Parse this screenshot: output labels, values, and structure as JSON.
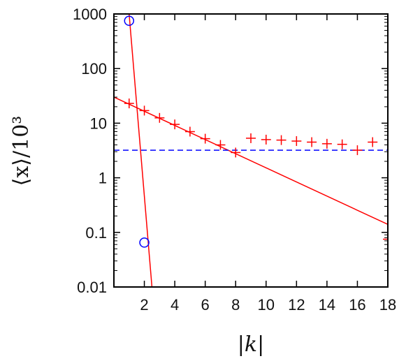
{
  "chart_data": {
    "type": "scatter",
    "xlabel": "|k|",
    "ylabel": "⟨x⟩/10³",
    "xlim": [
      0,
      18
    ],
    "ylim": [
      0.01,
      1000
    ],
    "yscale": "log",
    "xticks": [
      2,
      4,
      6,
      8,
      10,
      12,
      14,
      16,
      18
    ],
    "xtick_labels": [
      "2",
      "4",
      "6",
      "8",
      "10",
      "12",
      "14",
      "16",
      "18"
    ],
    "yticks": [
      0.01,
      0.1,
      1,
      10,
      100,
      1000
    ],
    "ytick_labels": [
      "0.01",
      "0.1",
      "1",
      "10",
      "100",
      "1000"
    ],
    "grid": false,
    "colors": {
      "plus": "#ff0000",
      "circle": "#0000ff",
      "dashed": "#0000ff",
      "fit": "#ff0000"
    },
    "series": [
      {
        "marker": "plus",
        "color": "#ff0000",
        "x": [
          1,
          2,
          3,
          4,
          5,
          6,
          7,
          8,
          9,
          10,
          11,
          12,
          13,
          14,
          15,
          16,
          17,
          18
        ],
        "y": [
          23,
          17,
          12.5,
          9.5,
          7,
          5.2,
          4,
          2.9,
          5.3,
          5,
          4.9,
          4.7,
          4.5,
          4.2,
          4.1,
          3.2,
          4.5,
          0.075
        ]
      },
      {
        "marker": "circle",
        "color": "#0000ff",
        "x": [
          1,
          2
        ],
        "y": [
          750,
          0.065
        ]
      }
    ],
    "lines": [
      {
        "style": "solid",
        "color": "#ff0000",
        "points": [
          [
            0,
            30
          ],
          [
            18,
            0.14
          ]
        ]
      },
      {
        "style": "solid",
        "color": "#ff0000",
        "points": [
          [
            1,
            1000
          ],
          [
            2.5,
            0.01
          ]
        ]
      },
      {
        "style": "dashed",
        "color": "#0000ff",
        "points": [
          [
            0,
            3.2
          ],
          [
            18,
            3.2
          ]
        ]
      }
    ]
  }
}
